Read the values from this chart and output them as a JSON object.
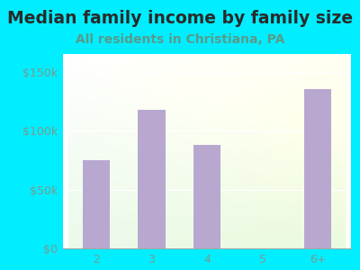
{
  "title": "Median family income by family size",
  "subtitle": "All residents in Christiana, PA",
  "categories": [
    "2",
    "3",
    "4",
    "5",
    "6+"
  ],
  "values": [
    75000,
    118000,
    88000,
    0,
    135000
  ],
  "bar_color": "#b8a8d0",
  "title_color": "#2a2a2a",
  "subtitle_color": "#5a9a8a",
  "bg_color": "#00eeff",
  "yticks": [
    0,
    50000,
    100000,
    150000
  ],
  "ytick_labels": [
    "$0",
    "$50k",
    "$100k",
    "$150k"
  ],
  "ylim": [
    0,
    165000
  ],
  "title_fontsize": 13.5,
  "subtitle_fontsize": 10,
  "tick_fontsize": 9,
  "tick_color": "#7a9a90"
}
